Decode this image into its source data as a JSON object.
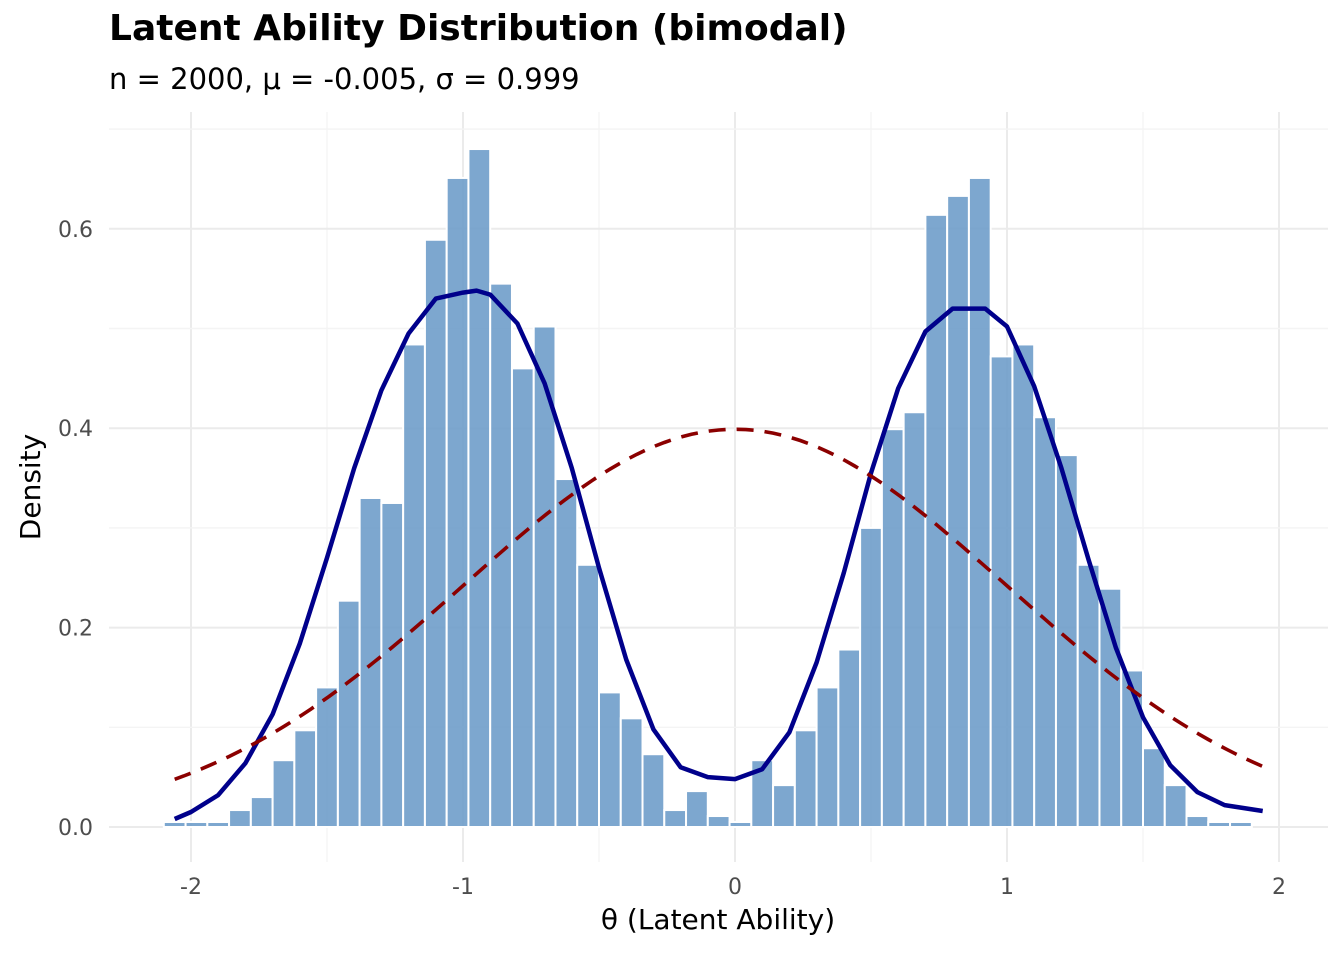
{
  "chart_data": {
    "type": "bar",
    "title": "Latent Ability Distribution (bimodal)",
    "subtitle": "n = 2000, μ = -0.005, σ = 0.999",
    "xlabel": "θ (Latent Ability)",
    "ylabel": "Density",
    "xlim": [
      -2.2,
      2.2
    ],
    "ylim": [
      0,
      0.69
    ],
    "x_ticks": [
      -2,
      -1,
      0,
      1,
      2
    ],
    "x_tick_labels": [
      "-2",
      "-1",
      "0",
      "1",
      "2"
    ],
    "y_ticks": [
      0.0,
      0.2,
      0.4,
      0.6
    ],
    "y_tick_labels": [
      "0.0",
      "0.2",
      "0.4",
      "0.6"
    ],
    "grid": true,
    "histogram": {
      "bin_start": -2.1,
      "bin_width": 0.08,
      "color": "#6b9bc8",
      "densities": [
        0.005,
        0.005,
        0.005,
        0.017,
        0.03,
        0.067,
        0.097,
        0.14,
        0.227,
        0.33,
        0.325,
        0.484,
        0.589,
        0.651,
        0.68,
        0.545,
        0.46,
        0.502,
        0.349,
        0.263,
        0.135,
        0.109,
        0.073,
        0.017,
        0.036,
        0.011,
        0.005,
        0.067,
        0.042,
        0.097,
        0.14,
        0.178,
        0.3,
        0.399,
        0.416,
        0.614,
        0.633,
        0.651,
        0.472,
        0.484,
        0.411,
        0.373,
        0.263,
        0.239,
        0.157,
        0.079,
        0.042,
        0.011,
        0.005,
        0.005
      ]
    },
    "series": [
      {
        "kind": "kernel-density",
        "color": "#00008b",
        "style": "solid",
        "x": [
          -2.06,
          -2.0,
          -1.9,
          -1.8,
          -1.7,
          -1.6,
          -1.5,
          -1.4,
          -1.3,
          -1.2,
          -1.1,
          -1.0,
          -0.95,
          -0.9,
          -0.8,
          -0.7,
          -0.6,
          -0.5,
          -0.4,
          -0.3,
          -0.2,
          -0.1,
          0.0,
          0.1,
          0.2,
          0.3,
          0.4,
          0.5,
          0.6,
          0.7,
          0.8,
          0.9,
          0.92,
          1.0,
          1.1,
          1.2,
          1.3,
          1.4,
          1.5,
          1.6,
          1.7,
          1.8,
          1.94
        ],
        "y": [
          0.008,
          0.015,
          0.032,
          0.064,
          0.113,
          0.184,
          0.27,
          0.36,
          0.438,
          0.495,
          0.53,
          0.536,
          0.538,
          0.534,
          0.505,
          0.445,
          0.36,
          0.26,
          0.168,
          0.098,
          0.06,
          0.05,
          0.048,
          0.058,
          0.095,
          0.165,
          0.255,
          0.355,
          0.44,
          0.497,
          0.52,
          0.52,
          0.52,
          0.502,
          0.442,
          0.36,
          0.268,
          0.18,
          0.11,
          0.062,
          0.035,
          0.022,
          0.016
        ]
      },
      {
        "kind": "normal-reference",
        "color": "#8b0000",
        "style": "dashed",
        "mean": 0,
        "sd": 1,
        "x_range": [
          -2.06,
          1.94
        ]
      }
    ]
  }
}
